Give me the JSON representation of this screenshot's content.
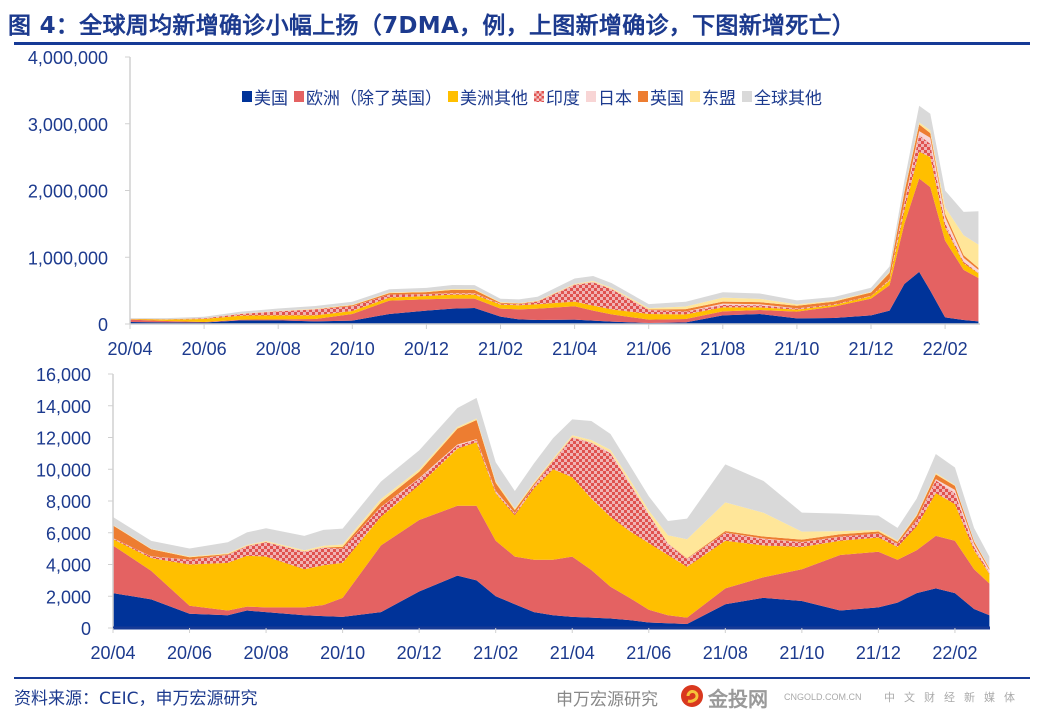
{
  "title": "图 4：全球周均新增确诊小幅上扬（7DMA，例，上图新增确诊，下图新增死亡）",
  "source": "资料来源：CEIC，申万宏源研究",
  "watermark": {
    "main": "金投网",
    "domain": "CNGOLD.COM.CN",
    "sub": "中文财经新媒体",
    "wechat": "申万宏源研究"
  },
  "legend": [
    {
      "name": "美国",
      "color": "#003399"
    },
    {
      "name": "欧洲（除了英国）",
      "color": "#e46262"
    },
    {
      "name": "美洲其他",
      "color": "#ffbf00"
    },
    {
      "name": "印度",
      "color": "pattern"
    },
    {
      "name": "日本",
      "color": "#f8d5d5"
    },
    {
      "name": "英国",
      "color": "#ed7d31"
    },
    {
      "name": "东盟",
      "color": "#ffe699"
    },
    {
      "name": "全球其他",
      "color": "#d9d9d9"
    }
  ],
  "chart_data": [
    {
      "type": "area",
      "stacked": true,
      "title": "新增确诊 (7DMA)",
      "ylim": [
        0,
        4000000
      ],
      "yticks": [
        "0",
        "1,000,000",
        "2,000,000",
        "3,000,000",
        "4,000,000"
      ],
      "ytick_values": [
        0,
        1000000,
        2000000,
        3000000,
        4000000
      ],
      "xticks": [
        "20/04",
        "20/06",
        "20/08",
        "20/10",
        "20/12",
        "21/02",
        "21/04",
        "21/06",
        "21/08",
        "21/10",
        "21/12",
        "22/02"
      ],
      "legend_position": "top",
      "x": [
        "2020-04-01",
        "2020-05-01",
        "2020-06-01",
        "2020-07-01",
        "2020-08-01",
        "2020-09-01",
        "2020-10-01",
        "2020-11-01",
        "2020-12-01",
        "2020-12-22",
        "2021-01-10",
        "2021-02-01",
        "2021-02-16",
        "2021-03-01",
        "2021-04-01",
        "2021-04-16",
        "2021-05-01",
        "2021-06-01",
        "2021-07-01",
        "2021-08-01",
        "2021-09-01",
        "2021-10-01",
        "2021-11-01",
        "2021-12-01",
        "2021-12-16",
        "2021-12-28",
        "2022-01-10",
        "2022-01-19",
        "2022-02-01",
        "2022-02-16",
        "2022-02-28"
      ],
      "series": [
        {
          "name": "美国",
          "values": [
            30000,
            25000,
            22000,
            55000,
            55000,
            40000,
            50000,
            150000,
            200000,
            230000,
            240000,
            110000,
            70000,
            60000,
            65000,
            50000,
            35000,
            15000,
            25000,
            130000,
            150000,
            85000,
            90000,
            130000,
            200000,
            600000,
            780000,
            500000,
            100000,
            60000,
            40000
          ]
        },
        {
          "name": "欧洲（除了英国）",
          "values": [
            35000,
            20000,
            8000,
            10000,
            15000,
            35000,
            100000,
            200000,
            170000,
            150000,
            140000,
            120000,
            150000,
            170000,
            200000,
            150000,
            110000,
            50000,
            50000,
            60000,
            60000,
            100000,
            170000,
            250000,
            380000,
            900000,
            1400000,
            1550000,
            1150000,
            750000,
            650000
          ]
        },
        {
          "name": "美洲其他",
          "values": [
            5000,
            20000,
            45000,
            60000,
            60000,
            55000,
            45000,
            45000,
            50000,
            60000,
            60000,
            60000,
            60000,
            65000,
            70000,
            75000,
            75000,
            85000,
            70000,
            60000,
            40000,
            30000,
            25000,
            35000,
            70000,
            200000,
            400000,
            450000,
            200000,
            100000,
            70000
          ]
        },
        {
          "name": "印度",
          "values": [
            1000,
            3000,
            10000,
            25000,
            60000,
            90000,
            70000,
            45000,
            25000,
            18000,
            15000,
            12000,
            14000,
            40000,
            250000,
            350000,
            300000,
            60000,
            40000,
            35000,
            30000,
            18000,
            10000,
            7000,
            15000,
            100000,
            250000,
            200000,
            60000,
            20000,
            10000
          ]
        },
        {
          "name": "日本",
          "values": [
            300,
            100,
            100,
            500,
            1000,
            500,
            500,
            1000,
            2000,
            4000,
            5000,
            2000,
            1000,
            1000,
            3000,
            5000,
            5000,
            2000,
            3000,
            20000,
            15000,
            1000,
            200,
            200,
            1000,
            20000,
            60000,
            90000,
            90000,
            60000,
            40000
          ]
        },
        {
          "name": "英国",
          "values": [
            5000,
            3000,
            1000,
            1000,
            1000,
            3000,
            15000,
            22000,
            30000,
            50000,
            50000,
            15000,
            10000,
            5000,
            3000,
            2000,
            2000,
            6000,
            35000,
            30000,
            32000,
            40000,
            40000,
            50000,
            100000,
            150000,
            100000,
            70000,
            50000,
            40000,
            30000
          ]
        },
        {
          "name": "东盟",
          "values": [
            1000,
            1000,
            2000,
            3000,
            5000,
            7000,
            8000,
            8000,
            10000,
            12000,
            12000,
            10000,
            8000,
            8000,
            10000,
            12000,
            15000,
            20000,
            40000,
            60000,
            50000,
            20000,
            15000,
            10000,
            15000,
            20000,
            30000,
            40000,
            100000,
            300000,
            350000
          ]
        },
        {
          "name": "全球其他",
          "values": [
            10000,
            15000,
            20000,
            30000,
            35000,
            40000,
            45000,
            50000,
            55000,
            60000,
            60000,
            50000,
            55000,
            60000,
            80000,
            75000,
            70000,
            60000,
            70000,
            80000,
            80000,
            60000,
            55000,
            60000,
            80000,
            150000,
            250000,
            250000,
            250000,
            350000,
            500000
          ]
        }
      ]
    },
    {
      "type": "area",
      "stacked": true,
      "title": "新增死亡 (7DMA)",
      "ylim": [
        0,
        16000
      ],
      "yticks": [
        "0",
        "2,000",
        "4,000",
        "6,000",
        "8,000",
        "10,000",
        "12,000",
        "14,000",
        "16,000"
      ],
      "ytick_values": [
        0,
        2000,
        4000,
        6000,
        8000,
        10000,
        12000,
        14000,
        16000
      ],
      "xticks": [
        "20/04",
        "20/06",
        "20/08",
        "20/10",
        "20/12",
        "21/02",
        "21/04",
        "21/06",
        "21/08",
        "21/10",
        "21/12",
        "22/02"
      ],
      "x": [
        "2020-04-01",
        "2020-05-01",
        "2020-06-01",
        "2020-07-01",
        "2020-07-16",
        "2020-08-01",
        "2020-09-01",
        "2020-09-16",
        "2020-10-01",
        "2020-11-01",
        "2020-12-01",
        "2021-01-01",
        "2021-01-16",
        "2021-02-01",
        "2021-02-16",
        "2021-03-01",
        "2021-03-16",
        "2021-04-01",
        "2021-04-16",
        "2021-05-01",
        "2021-05-16",
        "2021-06-01",
        "2021-06-16",
        "2021-07-01",
        "2021-08-01",
        "2021-09-01",
        "2021-10-01",
        "2021-11-01",
        "2021-12-01",
        "2021-12-16",
        "2022-01-01",
        "2022-01-16",
        "2022-02-01",
        "2022-02-16",
        "2022-02-28"
      ],
      "series": [
        {
          "name": "美国",
          "values": [
            2200,
            1800,
            900,
            800,
            1100,
            1000,
            800,
            750,
            700,
            1000,
            2300,
            3300,
            3000,
            2000,
            1500,
            1000,
            800,
            700,
            650,
            600,
            500,
            350,
            300,
            250,
            1500,
            1900,
            1700,
            1100,
            1300,
            1600,
            2200,
            2500,
            2200,
            1200,
            800
          ]
        },
        {
          "name": "欧洲（除了英国）",
          "values": [
            3000,
            1800,
            500,
            300,
            250,
            300,
            500,
            700,
            1200,
            4200,
            4500,
            4400,
            4700,
            3500,
            3000,
            3300,
            3500,
            3800,
            3000,
            2000,
            1400,
            800,
            500,
            400,
            1000,
            1300,
            2000,
            3500,
            3500,
            2700,
            2700,
            3300,
            3300,
            2500,
            2000
          ]
        },
        {
          "name": "美洲其他",
          "values": [
            400,
            800,
            2600,
            3000,
            3200,
            3200,
            2400,
            2500,
            2200,
            1800,
            2200,
            3600,
            4000,
            3000,
            2600,
            4500,
            5700,
            5000,
            4500,
            4400,
            4200,
            4200,
            3800,
            3200,
            3000,
            2000,
            1400,
            900,
            900,
            800,
            1500,
            2700,
            2300,
            1200,
            600
          ]
        },
        {
          "name": "印度",
          "values": [
            50,
            100,
            300,
            500,
            600,
            900,
            1100,
            1100,
            900,
            600,
            400,
            200,
            150,
            100,
            100,
            150,
            500,
            2500,
            3500,
            4000,
            3000,
            1800,
            700,
            500,
            500,
            400,
            300,
            250,
            250,
            200,
            400,
            800,
            700,
            200,
            100
          ]
        },
        {
          "name": "日本",
          "values": [
            10,
            10,
            5,
            5,
            5,
            10,
            10,
            10,
            10,
            20,
            40,
            60,
            50,
            40,
            30,
            20,
            20,
            20,
            30,
            60,
            60,
            40,
            20,
            10,
            10,
            30,
            20,
            5,
            5,
            5,
            20,
            80,
            200,
            200,
            150
          ]
        },
        {
          "name": "英国",
          "values": [
            800,
            450,
            150,
            50,
            20,
            10,
            10,
            20,
            100,
            300,
            400,
            1000,
            1200,
            500,
            200,
            100,
            40,
            20,
            10,
            10,
            10,
            10,
            20,
            30,
            100,
            130,
            150,
            150,
            120,
            120,
            250,
            300,
            250,
            150,
            100
          ]
        },
        {
          "name": "东盟",
          "values": [
            30,
            30,
            50,
            50,
            50,
            60,
            80,
            100,
            150,
            200,
            150,
            100,
            100,
            100,
            100,
            100,
            100,
            100,
            150,
            150,
            200,
            200,
            500,
            1200,
            1800,
            1500,
            500,
            200,
            100,
            80,
            80,
            80,
            60,
            50,
            50
          ]
        },
        {
          "name": "全球其他",
          "values": [
            500,
            500,
            500,
            700,
            800,
            800,
            900,
            1000,
            1000,
            1100,
            1200,
            1200,
            1300,
            1200,
            1100,
            1200,
            1300,
            1000,
            1200,
            1000,
            900,
            900,
            900,
            1300,
            2400,
            2000,
            1200,
            1100,
            900,
            800,
            1000,
            1200,
            1100,
            800,
            700
          ]
        }
      ]
    }
  ]
}
